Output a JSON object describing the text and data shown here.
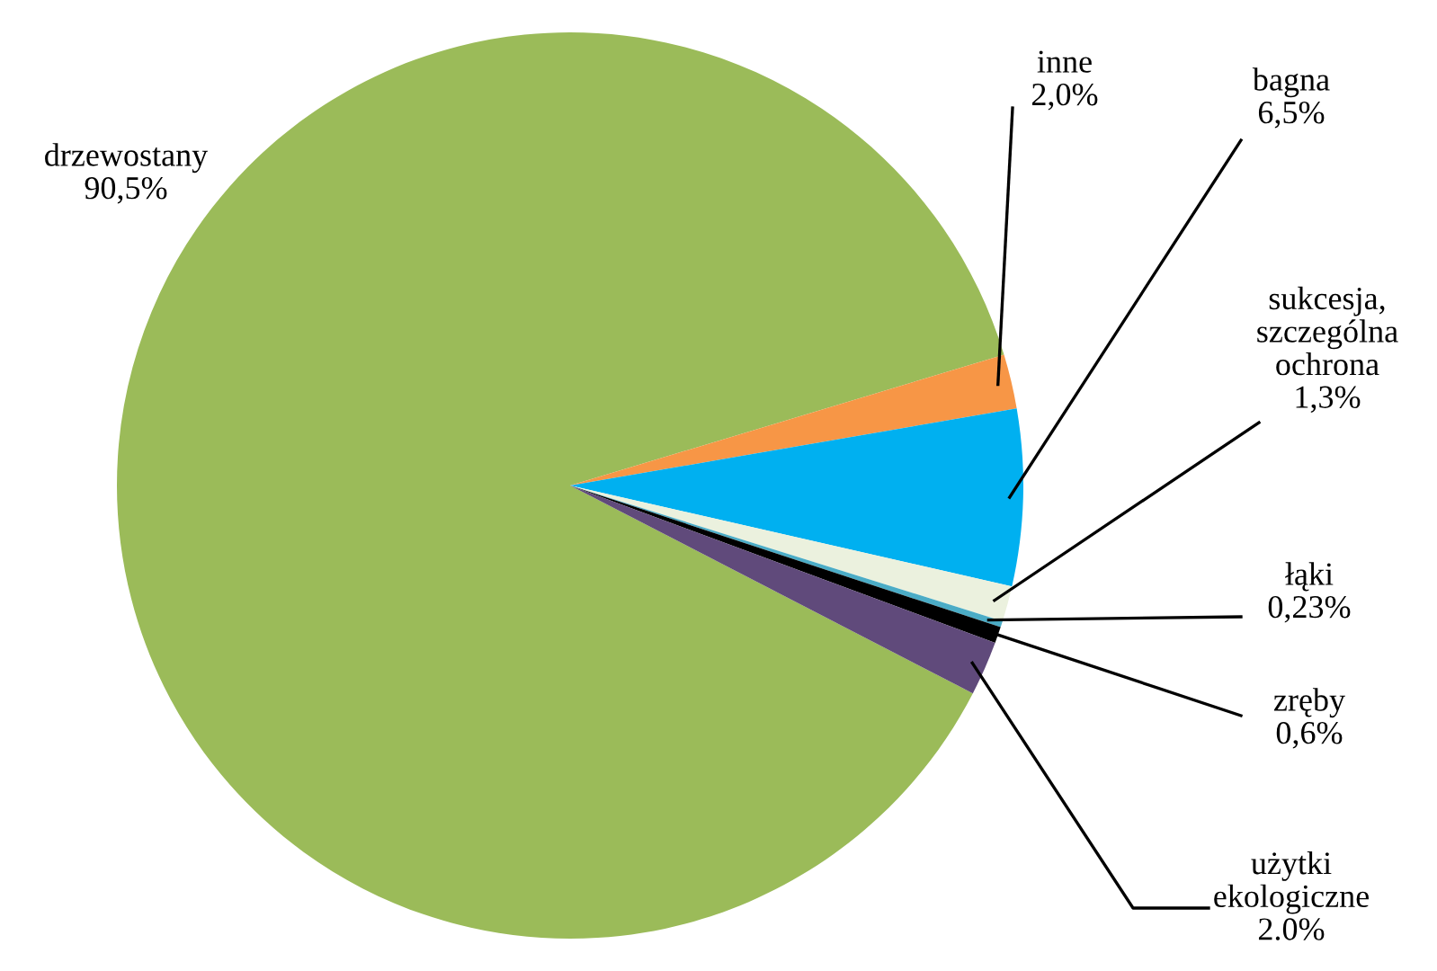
{
  "chart_data": {
    "type": "pie",
    "categories": [
      "drzewostany",
      "inne",
      "bagna",
      "sukcesja, szczególna ochrona",
      "łąki",
      "zręby",
      "użytki ekologiczne"
    ],
    "values": [
      90.5,
      2.0,
      6.5,
      1.3,
      0.23,
      0.6,
      2.0
    ],
    "value_labels": [
      "90,5%",
      "2,0%",
      "6,5%",
      "1,3%",
      "0,23%",
      "0,6%",
      "2.0%"
    ],
    "colors": [
      "#9bbb59",
      "#f79646",
      "#00b0f0",
      "#ebf1de",
      "#4bacc6",
      "#000000",
      "#604a7b"
    ]
  }
}
